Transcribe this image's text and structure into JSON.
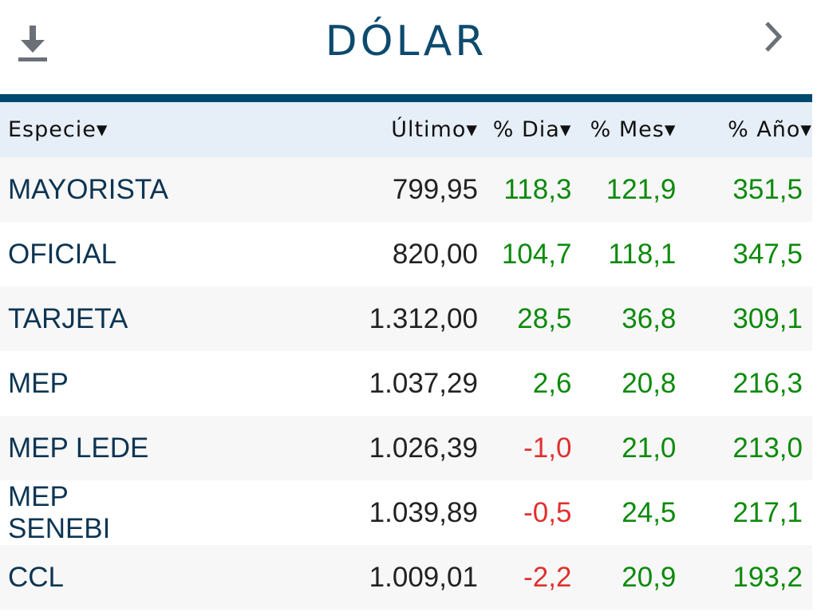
{
  "header": {
    "title": "DÓLAR",
    "download_icon": "download-icon",
    "next_icon": "chevron-right-icon"
  },
  "columns": [
    "Especie▾",
    "Último▾",
    "% Dia▾",
    "% Mes▾",
    "% Año▾"
  ],
  "colors": {
    "accent": "#004a70",
    "positive": "#0c8a0c",
    "negative": "#e03030"
  },
  "rows": [
    {
      "especie": "MAYORISTA",
      "ultimo": "799,95",
      "dia": "118,3",
      "mes": "121,9",
      "anio": "351,5"
    },
    {
      "especie": "OFICIAL",
      "ultimo": "820,00",
      "dia": "104,7",
      "mes": "118,1",
      "anio": "347,5"
    },
    {
      "especie": "TARJETA",
      "ultimo": "1.312,00",
      "dia": "28,5",
      "mes": "36,8",
      "anio": "309,1"
    },
    {
      "especie": "MEP",
      "ultimo": "1.037,29",
      "dia": "2,6",
      "mes": "20,8",
      "anio": "216,3"
    },
    {
      "especie": "MEP LEDE",
      "ultimo": "1.026,39",
      "dia": "-1,0",
      "mes": "21,0",
      "anio": "213,0"
    },
    {
      "especie": "MEP SENEBI",
      "ultimo": "1.039,89",
      "dia": "-0,5",
      "mes": "24,5",
      "anio": "217,1"
    },
    {
      "especie": "CCL",
      "ultimo": "1.009,01",
      "dia": "-2,2",
      "mes": "20,9",
      "anio": "193,2"
    }
  ]
}
